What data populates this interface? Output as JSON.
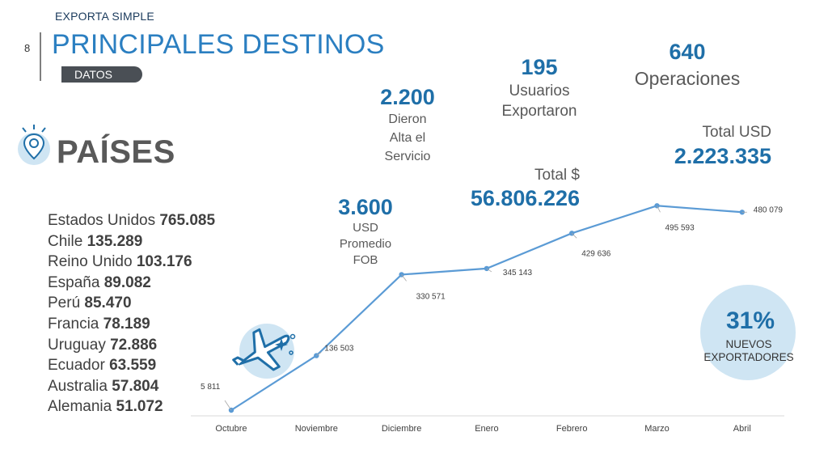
{
  "header": {
    "supertitle": "EXPORTA SIMPLE",
    "page_number": "8",
    "title": "PRINCIPALES DESTINOS",
    "badge": "DATOS"
  },
  "section": {
    "title": "PAÍSES"
  },
  "countries": [
    {
      "name": "Estados Unidos",
      "value": "765.085"
    },
    {
      "name": "Chile",
      "value": "135.289"
    },
    {
      "name": "Reino Unido",
      "value": "103.176"
    },
    {
      "name": "España",
      "value": "89.082"
    },
    {
      "name": "Perú",
      "value": "85.470"
    },
    {
      "name": "Francia",
      "value": "78.189"
    },
    {
      "name": "Uruguay",
      "value": "72.886"
    },
    {
      "name": "Ecuador",
      "value": "63.559"
    },
    {
      "name": "Australia",
      "value": "57.804"
    },
    {
      "name": "Alemania",
      "value": "51.072"
    }
  ],
  "stats": {
    "alta": {
      "value": "2.200",
      "l1": "Dieron",
      "l2": "Alta el",
      "l3": "Servicio"
    },
    "usuarios": {
      "value": "195",
      "l1": "Usuarios",
      "l2": "Exportaron"
    },
    "operaciones": {
      "value": "640",
      "l1": "Operaciones"
    },
    "promedio": {
      "value": "3.600",
      "l1": "USD",
      "l2": "Promedio",
      "l3": "FOB"
    },
    "total_pesos": {
      "label": "Total $",
      "value": "56.806.226"
    },
    "total_usd": {
      "label": "Total USD",
      "value": "2.223.335"
    }
  },
  "nuevos": {
    "percent": "31%",
    "line1": "NUEVOS",
    "line2": "EXPORTADORES"
  },
  "icons": {
    "location": "location-pin-icon",
    "plane": "airplane-icon"
  },
  "colors": {
    "accent": "#1f6fa8",
    "line": "#5b9bd5",
    "title": "#2b7fc1"
  },
  "chart_data": {
    "type": "line",
    "categories": [
      "Octubre",
      "Noviembre",
      "Diciembre",
      "Enero",
      "Febrero",
      "Marzo",
      "Abril"
    ],
    "values": [
      5811,
      136503,
      330571,
      345143,
      429636,
      495593,
      480079
    ],
    "value_labels": [
      "5 811",
      "136 503",
      "330 571",
      "345 143",
      "429 636",
      "495 593",
      "480 079"
    ],
    "title": "",
    "xlabel": "",
    "ylabel": "",
    "ylim": [
      0,
      500000
    ]
  }
}
